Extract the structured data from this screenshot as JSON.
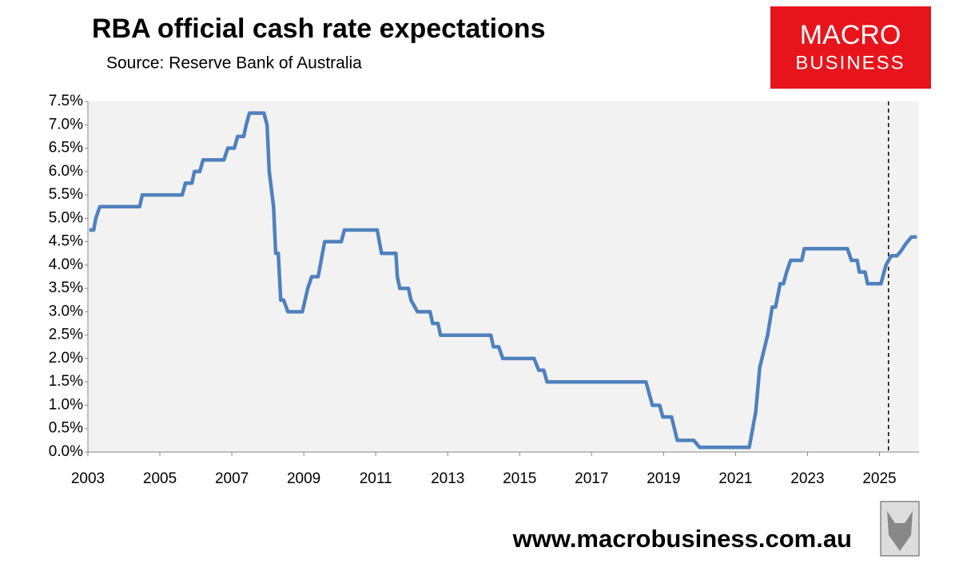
{
  "chart_data": {
    "type": "line",
    "title": "RBA official cash rate expectations",
    "subtitle": "Source: Reserve Bank of Australia",
    "color": "#4f81bd",
    "x": [
      2003.04,
      2003.16,
      2003.22,
      2003.33,
      2004.44,
      2004.51,
      2005.62,
      2005.71,
      2005.89,
      2005.96,
      2006.11,
      2006.2,
      2006.78,
      2006.89,
      2007.07,
      2007.16,
      2007.33,
      2007.4,
      2007.49,
      2007.89,
      2007.98,
      2008.04,
      2008.16,
      2008.22,
      2008.29,
      2008.36,
      2008.44,
      2008.56,
      2008.96,
      2009.11,
      2009.22,
      2009.4,
      2009.58,
      2010.04,
      2010.13,
      2011.04,
      2011.16,
      2011.56,
      2011.6,
      2011.67,
      2011.91,
      2011.98,
      2012.16,
      2012.51,
      2012.58,
      2012.73,
      2012.8,
      2014.2,
      2014.27,
      2014.42,
      2014.53,
      2015.4,
      2015.53,
      2015.67,
      2015.76,
      2018.51,
      2018.6,
      2018.69,
      2018.89,
      2018.98,
      2019.22,
      2019.38,
      2019.84,
      2020.0,
      2021.38,
      2021.44,
      2021.56,
      2021.67,
      2021.89,
      2022.02,
      2022.11,
      2022.24,
      2022.33,
      2022.42,
      2022.53,
      2022.84,
      2022.91,
      2024.11,
      2024.22,
      2024.38,
      2024.44,
      2024.6,
      2024.67,
      2025.04,
      2025.18,
      2025.33,
      2025.49,
      2025.6,
      2025.73,
      2025.89,
      2026.04
    ],
    "values": [
      4.75,
      4.75,
      5.0,
      5.25,
      5.25,
      5.5,
      5.5,
      5.75,
      5.75,
      6.0,
      6.0,
      6.25,
      6.25,
      6.5,
      6.5,
      6.75,
      6.75,
      7.0,
      7.25,
      7.25,
      7.0,
      6.0,
      5.25,
      4.25,
      4.25,
      3.25,
      3.25,
      3.0,
      3.0,
      3.5,
      3.75,
      3.75,
      4.5,
      4.5,
      4.75,
      4.75,
      4.25,
      4.25,
      3.75,
      3.5,
      3.5,
      3.25,
      3.0,
      3.0,
      2.75,
      2.75,
      2.5,
      2.5,
      2.25,
      2.25,
      2.0,
      2.0,
      1.75,
      1.75,
      1.5,
      1.5,
      1.25,
      1.0,
      1.0,
      0.75,
      0.75,
      0.25,
      0.25,
      0.1,
      0.1,
      0.35,
      0.85,
      1.8,
      2.5,
      3.1,
      3.1,
      3.6,
      3.6,
      3.85,
      4.1,
      4.1,
      4.35,
      4.35,
      4.1,
      4.1,
      3.85,
      3.85,
      3.6,
      3.6,
      4.0,
      4.2,
      4.2,
      4.3,
      4.45,
      4.6,
      4.6
    ],
    "xlim": [
      2003,
      2026.1
    ],
    "xticks": [
      2003,
      2005,
      2007,
      2009,
      2011,
      2013,
      2015,
      2017,
      2019,
      2021,
      2023,
      2025
    ],
    "ylim": [
      0,
      7.5
    ],
    "yticks": [
      {
        "value": 0,
        "label": "0.0%"
      },
      {
        "value": 0.5,
        "label": "0.5%"
      },
      {
        "value": 1,
        "label": "1.0%"
      },
      {
        "value": 1.5,
        "label": "1.5%"
      },
      {
        "value": 2,
        "label": "2.0%"
      },
      {
        "value": 2.5,
        "label": "2.5%"
      },
      {
        "value": 3,
        "label": "3.0%"
      },
      {
        "value": 3.5,
        "label": "3.5%"
      },
      {
        "value": 4,
        "label": "4.0%"
      },
      {
        "value": 4.5,
        "label": "4.5%"
      },
      {
        "value": 5,
        "label": "5.0%"
      },
      {
        "value": 5.5,
        "label": "5.5%"
      },
      {
        "value": 6,
        "label": "6.0%"
      },
      {
        "value": 6.5,
        "label": "6.5%"
      },
      {
        "value": 7,
        "label": "7.0%"
      },
      {
        "value": 7.5,
        "label": "7.5%"
      }
    ],
    "vline_x": 2025.25,
    "grid": false
  },
  "logo": {
    "line1": "MACRO",
    "line2": "BUSINESS"
  },
  "footer": "www.macrobusiness.com.au"
}
